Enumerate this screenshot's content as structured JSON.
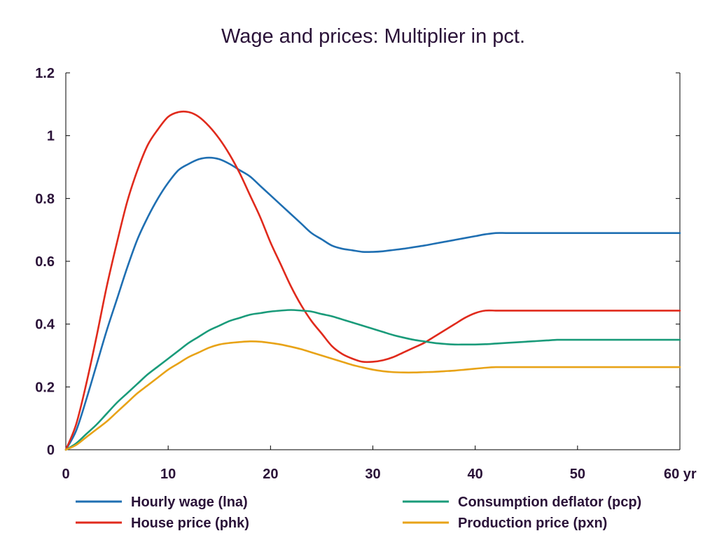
{
  "chart_data": {
    "type": "line",
    "title": "Wage and prices: Multiplier in pct.",
    "xlabel": "",
    "ylabel": "",
    "xlim": [
      0,
      60
    ],
    "ylim": [
      0,
      1.2
    ],
    "x_ticks": [
      0,
      10,
      20,
      30,
      40,
      50,
      60
    ],
    "x_tick_labels": [
      "0",
      "10",
      "20",
      "30",
      "40",
      "50",
      "60 yr"
    ],
    "y_ticks": [
      0,
      0.2,
      0.4,
      0.6,
      0.8,
      1.0,
      1.2
    ],
    "y_tick_labels": [
      "0",
      "0.2",
      "0.4",
      "0.6",
      "0.8",
      "1",
      "1.2"
    ],
    "grid": false,
    "legend_position": "bottom",
    "x": [
      0,
      1,
      2,
      3,
      4,
      5,
      6,
      7,
      8,
      9,
      10,
      11,
      12,
      13,
      14,
      15,
      16,
      17,
      18,
      19,
      20,
      21,
      22,
      23,
      24,
      25,
      26,
      27,
      28,
      29,
      30,
      31,
      32,
      33,
      34,
      35,
      36,
      37,
      38,
      39,
      40,
      41,
      42,
      43,
      44,
      45,
      46,
      47,
      48,
      49,
      50,
      51,
      52,
      53,
      54,
      55,
      56,
      57,
      58,
      59,
      60
    ],
    "series": [
      {
        "name": "Hourly wage (lna)",
        "color": "#1f6fb2",
        "values": [
          0.0,
          0.06,
          0.16,
          0.27,
          0.38,
          0.48,
          0.58,
          0.67,
          0.74,
          0.8,
          0.85,
          0.89,
          0.91,
          0.925,
          0.93,
          0.925,
          0.91,
          0.89,
          0.87,
          0.84,
          0.81,
          0.78,
          0.75,
          0.72,
          0.69,
          0.67,
          0.65,
          0.64,
          0.635,
          0.63,
          0.63,
          0.632,
          0.636,
          0.64,
          0.645,
          0.65,
          0.656,
          0.662,
          0.668,
          0.674,
          0.68,
          0.686,
          0.69,
          0.69,
          0.69,
          0.69,
          0.69,
          0.69,
          0.69,
          0.69,
          0.69,
          0.69,
          0.69,
          0.69,
          0.69,
          0.69,
          0.69,
          0.69,
          0.69,
          0.69,
          0.69
        ]
      },
      {
        "name": "House price (phk)",
        "color": "#e02a1c",
        "values": [
          0.0,
          0.08,
          0.21,
          0.36,
          0.52,
          0.66,
          0.79,
          0.89,
          0.97,
          1.02,
          1.06,
          1.075,
          1.075,
          1.06,
          1.03,
          0.99,
          0.94,
          0.88,
          0.81,
          0.74,
          0.66,
          0.59,
          0.52,
          0.46,
          0.41,
          0.37,
          0.33,
          0.305,
          0.29,
          0.28,
          0.28,
          0.285,
          0.295,
          0.31,
          0.325,
          0.34,
          0.36,
          0.38,
          0.4,
          0.42,
          0.435,
          0.443,
          0.443,
          0.443,
          0.443,
          0.443,
          0.443,
          0.443,
          0.443,
          0.443,
          0.443,
          0.443,
          0.443,
          0.443,
          0.443,
          0.443,
          0.443,
          0.443,
          0.443,
          0.443,
          0.443
        ]
      },
      {
        "name": "Consumption deflator (pcp)",
        "color": "#1a9b7a",
        "values": [
          0.0,
          0.02,
          0.05,
          0.08,
          0.115,
          0.15,
          0.18,
          0.21,
          0.24,
          0.265,
          0.29,
          0.315,
          0.34,
          0.36,
          0.38,
          0.395,
          0.41,
          0.42,
          0.43,
          0.435,
          0.44,
          0.443,
          0.445,
          0.443,
          0.44,
          0.432,
          0.425,
          0.415,
          0.405,
          0.395,
          0.385,
          0.375,
          0.365,
          0.357,
          0.35,
          0.345,
          0.34,
          0.337,
          0.335,
          0.335,
          0.335,
          0.336,
          0.338,
          0.34,
          0.342,
          0.344,
          0.346,
          0.348,
          0.35,
          0.35,
          0.35,
          0.35,
          0.35,
          0.35,
          0.35,
          0.35,
          0.35,
          0.35,
          0.35,
          0.35,
          0.35
        ]
      },
      {
        "name": "Production price (pxn)",
        "color": "#e8a317",
        "values": [
          0.0,
          0.015,
          0.04,
          0.065,
          0.09,
          0.12,
          0.15,
          0.18,
          0.205,
          0.23,
          0.255,
          0.275,
          0.295,
          0.31,
          0.325,
          0.335,
          0.34,
          0.343,
          0.345,
          0.344,
          0.34,
          0.335,
          0.328,
          0.32,
          0.31,
          0.3,
          0.29,
          0.28,
          0.27,
          0.262,
          0.255,
          0.25,
          0.247,
          0.246,
          0.246,
          0.247,
          0.248,
          0.25,
          0.252,
          0.255,
          0.258,
          0.261,
          0.263,
          0.263,
          0.263,
          0.263,
          0.263,
          0.263,
          0.263,
          0.263,
          0.263,
          0.263,
          0.263,
          0.263,
          0.263,
          0.263,
          0.263,
          0.263,
          0.263,
          0.263,
          0.263
        ]
      }
    ]
  }
}
